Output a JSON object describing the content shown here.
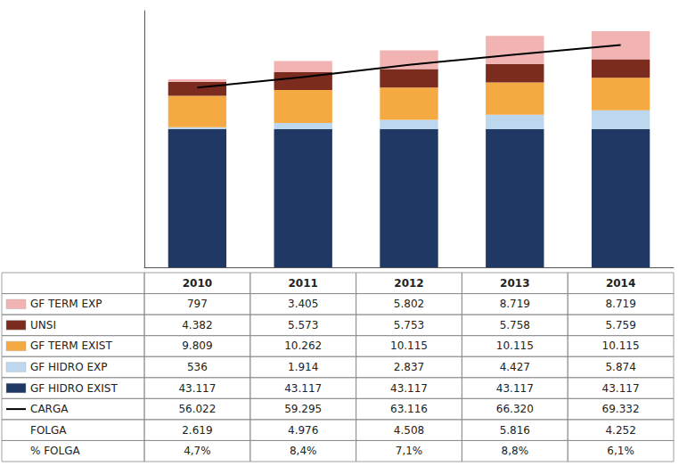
{
  "chart_data": {
    "type": "bar",
    "stacked": true,
    "grid": false,
    "tick_labels": false,
    "categories": [
      "2010",
      "2011",
      "2012",
      "2013",
      "2014"
    ],
    "ylim": [
      0,
      80000
    ],
    "series": [
      {
        "name": "GF HIDRO EXIST",
        "type": "bar",
        "color": "#1F3864",
        "values": [
          43117,
          43117,
          43117,
          43117,
          43117
        ],
        "value_labels": [
          "43.117",
          "43.117",
          "43.117",
          "43.117",
          "43.117"
        ]
      },
      {
        "name": "GF HIDRO EXP",
        "type": "bar",
        "color": "#BDD7EE",
        "values": [
          536,
          1914,
          2837,
          4427,
          5874
        ],
        "value_labels": [
          "536",
          "1.914",
          "2.837",
          "4.427",
          "5.874"
        ]
      },
      {
        "name": "GF TERM EXIST",
        "type": "bar",
        "color": "#F4A942",
        "values": [
          9809,
          10262,
          10115,
          10115,
          10115
        ],
        "value_labels": [
          "9.809",
          "10.262",
          "10.115",
          "10.115",
          "10.115"
        ]
      },
      {
        "name": "UNSI",
        "type": "bar",
        "color": "#7B2C1E",
        "values": [
          4382,
          5573,
          5753,
          5758,
          5759
        ],
        "value_labels": [
          "4.382",
          "5.573",
          "5.753",
          "5.758",
          "5.759"
        ]
      },
      {
        "name": "GF TERM EXP",
        "type": "bar",
        "color": "#F2B3B3",
        "values": [
          797,
          3405,
          5802,
          8719,
          8719
        ],
        "value_labels": [
          "797",
          "3.405",
          "5.802",
          "8.719",
          "8.719"
        ]
      },
      {
        "name": "CARGA",
        "type": "line",
        "color": "#000000",
        "values": [
          56022,
          59295,
          63116,
          66320,
          69332
        ],
        "value_labels": [
          "56.022",
          "59.295",
          "63.116",
          "66.320",
          "69.332"
        ]
      },
      {
        "name": "FOLGA",
        "type": "table",
        "values": [
          2619,
          4976,
          4508,
          5816,
          4252
        ],
        "value_labels": [
          "2.619",
          "4.976",
          "4.508",
          "5.816",
          "4.252"
        ]
      },
      {
        "name": "% FOLGA",
        "type": "table",
        "values": [
          4.7,
          8.4,
          7.1,
          8.8,
          6.1
        ],
        "value_labels": [
          "4,7%",
          "8,4%",
          "7,1%",
          "8,8%",
          "6,1%"
        ]
      }
    ]
  }
}
